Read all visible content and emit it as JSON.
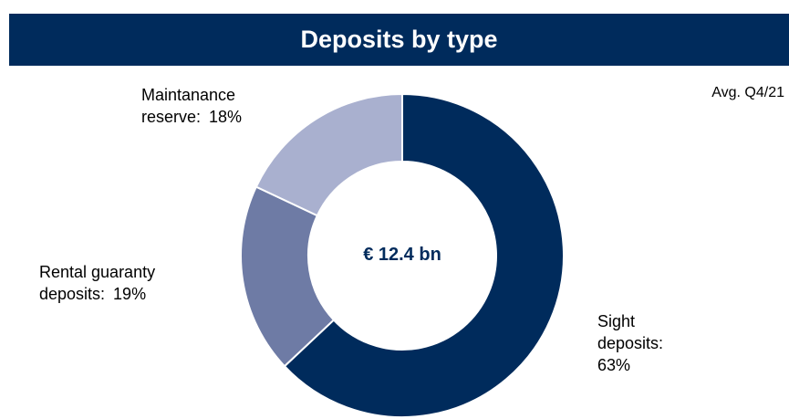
{
  "chart_data": {
    "type": "donut",
    "title": "Deposits by type",
    "subtitle": "Avg. Q4/21",
    "center_label": "€ 12.4 bn",
    "categories": [
      "Sight deposits:",
      "Rental guaranty deposits:",
      "Maintanance reserve:"
    ],
    "values": [
      63,
      19,
      18
    ],
    "value_labels": [
      "63%",
      "19%",
      "18%"
    ],
    "colors": [
      "#002b5c",
      "#6e7ba5",
      "#a9b0cf"
    ]
  }
}
